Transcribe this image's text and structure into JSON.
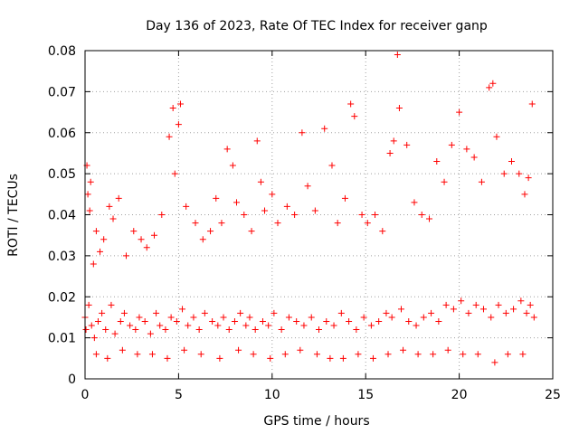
{
  "chart_data": {
    "type": "scatter",
    "title": "Day 136 of 2023, Rate Of TEC Index for receiver ganp",
    "xlabel": "GPS time / hours",
    "ylabel": "ROTI / TECUs",
    "xlim": [
      0,
      25
    ],
    "ylim": [
      0,
      0.08
    ],
    "x_ticks": [
      "0",
      "5",
      "10",
      "15",
      "20",
      "25"
    ],
    "y_ticks": [
      "0",
      "0.01",
      "0.02",
      "0.03",
      "0.04",
      "0.05",
      "0.06",
      "0.07",
      "0.08"
    ],
    "grid": true,
    "marker": "+",
    "series": [
      {
        "name": "ROTI",
        "color": "#ff0000",
        "x": [
          0.0,
          0.1,
          0.15,
          0.25,
          0.3,
          0.45,
          0.6,
          0.8,
          1.0,
          1.3,
          1.5,
          1.8,
          2.2,
          2.6,
          3.0,
          3.3,
          3.7,
          4.1,
          4.5,
          4.7,
          4.8,
          5.0,
          5.1,
          5.4,
          5.9,
          6.3,
          6.7,
          7.0,
          7.3,
          7.6,
          7.9,
          8.1,
          8.5,
          8.9,
          9.2,
          9.4,
          9.6,
          10.0,
          10.3,
          10.8,
          11.2,
          11.6,
          11.9,
          12.3,
          12.8,
          13.2,
          13.5,
          13.9,
          14.2,
          14.4,
          14.8,
          15.1,
          15.5,
          15.9,
          16.3,
          16.5,
          16.7,
          16.8,
          17.2,
          17.6,
          18.0,
          18.4,
          18.8,
          19.2,
          19.6,
          20.0,
          20.4,
          20.8,
          21.2,
          21.6,
          21.8,
          22.0,
          22.4,
          22.8,
          23.2,
          23.5,
          23.7,
          23.9,
          0.05,
          0.2,
          0.35,
          0.5,
          0.7,
          0.9,
          1.1,
          1.4,
          1.6,
          1.9,
          2.1,
          2.4,
          2.7,
          2.9,
          3.2,
          3.5,
          3.8,
          4.0,
          4.3,
          4.6,
          4.9,
          5.2,
          5.5,
          5.8,
          6.1,
          6.4,
          6.8,
          7.1,
          7.4,
          7.7,
          8.0,
          8.3,
          8.6,
          8.8,
          9.1,
          9.5,
          9.8,
          10.1,
          10.5,
          10.9,
          11.3,
          11.7,
          12.1,
          12.5,
          12.9,
          13.3,
          13.7,
          14.1,
          14.5,
          14.9,
          15.3,
          15.7,
          16.1,
          16.4,
          16.9,
          17.3,
          17.7,
          18.1,
          18.5,
          18.9,
          19.3,
          19.7,
          20.1,
          20.5,
          20.9,
          21.3,
          21.7,
          22.1,
          22.5,
          22.9,
          23.3,
          23.6,
          23.8,
          24.0,
          0.6,
          1.2,
          2.0,
          2.8,
          3.6,
          4.4,
          5.3,
          6.2,
          7.2,
          8.2,
          9.0,
          9.9,
          10.7,
          11.5,
          12.4,
          13.1,
          13.8,
          14.6,
          15.4,
          16.2,
          17.0,
          17.8,
          18.6,
          19.4,
          20.2,
          21.0,
          21.9,
          22.6,
          23.4
        ],
        "y": [
          0.015,
          0.052,
          0.045,
          0.041,
          0.048,
          0.028,
          0.036,
          0.031,
          0.034,
          0.042,
          0.039,
          0.044,
          0.03,
          0.036,
          0.034,
          0.032,
          0.035,
          0.04,
          0.059,
          0.066,
          0.05,
          0.062,
          0.067,
          0.042,
          0.038,
          0.034,
          0.036,
          0.044,
          0.038,
          0.056,
          0.052,
          0.043,
          0.04,
          0.036,
          0.058,
          0.048,
          0.041,
          0.045,
          0.038,
          0.042,
          0.04,
          0.06,
          0.047,
          0.041,
          0.061,
          0.052,
          0.038,
          0.044,
          0.067,
          0.064,
          0.04,
          0.038,
          0.04,
          0.036,
          0.055,
          0.058,
          0.079,
          0.066,
          0.057,
          0.043,
          0.04,
          0.039,
          0.053,
          0.048,
          0.057,
          0.065,
          0.056,
          0.054,
          0.048,
          0.071,
          0.072,
          0.059,
          0.05,
          0.053,
          0.05,
          0.045,
          0.049,
          0.067,
          0.012,
          0.018,
          0.013,
          0.01,
          0.014,
          0.016,
          0.012,
          0.018,
          0.011,
          0.014,
          0.016,
          0.013,
          0.012,
          0.015,
          0.014,
          0.011,
          0.016,
          0.013,
          0.012,
          0.015,
          0.014,
          0.017,
          0.013,
          0.015,
          0.012,
          0.016,
          0.014,
          0.013,
          0.015,
          0.012,
          0.014,
          0.016,
          0.013,
          0.015,
          0.012,
          0.014,
          0.013,
          0.016,
          0.012,
          0.015,
          0.014,
          0.013,
          0.015,
          0.012,
          0.014,
          0.013,
          0.016,
          0.014,
          0.012,
          0.015,
          0.013,
          0.014,
          0.016,
          0.015,
          0.017,
          0.014,
          0.013,
          0.015,
          0.016,
          0.014,
          0.018,
          0.017,
          0.019,
          0.016,
          0.018,
          0.017,
          0.015,
          0.018,
          0.016,
          0.017,
          0.019,
          0.016,
          0.018,
          0.015,
          0.006,
          0.005,
          0.007,
          0.006,
          0.006,
          0.005,
          0.007,
          0.006,
          0.005,
          0.007,
          0.006,
          0.005,
          0.006,
          0.007,
          0.006,
          0.005,
          0.005,
          0.006,
          0.005,
          0.006,
          0.007,
          0.006,
          0.006,
          0.007,
          0.006,
          0.006,
          0.004,
          0.006,
          0.006
        ]
      }
    ]
  }
}
